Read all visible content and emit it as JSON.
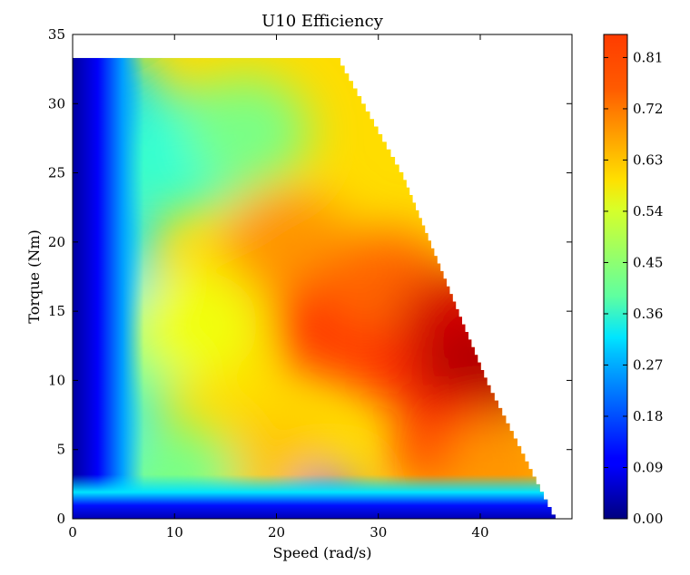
{
  "chart_data": {
    "type": "heatmap",
    "title": "U10 Efficiency",
    "xlabel": "Speed (rad/s)",
    "ylabel": "Torque (Nm)",
    "xlim": [
      0,
      49
    ],
    "ylim": [
      0,
      35
    ],
    "xticks": [
      0,
      10,
      20,
      30,
      40
    ],
    "yticks": [
      0,
      5,
      10,
      15,
      20,
      25,
      30,
      35
    ],
    "colormap": "jet",
    "colorbar": {
      "range": [
        0.0,
        0.8505
      ],
      "ticks": [
        "0.00",
        "0.09",
        "0.18",
        "0.27",
        "0.36",
        "0.45",
        "0.54",
        "0.63",
        "0.72",
        "0.81"
      ],
      "placement": "right"
    },
    "data_region": {
      "torque_max": 33.3,
      "boundary_speed_at_torque": [
        {
          "torque": 33.3,
          "speed": 26.3
        },
        {
          "torque": 25,
          "speed": 32.5
        },
        {
          "torque": 15,
          "speed": 38.0
        },
        {
          "torque": 10,
          "speed": 40.8
        },
        {
          "torque": 5,
          "speed": 44.2
        },
        {
          "torque": 2,
          "speed": 46.2
        },
        {
          "torque": 0,
          "speed": 47.6
        }
      ]
    },
    "regions": [
      {
        "speed": 1.5,
        "torque": 30,
        "efficiency": 0.09
      },
      {
        "speed": 12,
        "torque": 27,
        "efficiency": 0.35
      },
      {
        "speed": 17,
        "torque": 28,
        "efficiency": 0.42
      },
      {
        "speed": 6,
        "torque": 12,
        "efficiency": 0.4
      },
      {
        "speed": 12,
        "torque": 14,
        "efficiency": 0.52
      },
      {
        "speed": 21,
        "torque": 20,
        "efficiency": 0.62
      },
      {
        "speed": 26,
        "torque": 14,
        "efficiency": 0.7
      },
      {
        "speed": 33,
        "torque": 12,
        "efficiency": 0.71
      },
      {
        "speed": 31,
        "torque": 17,
        "efficiency": 0.66
      },
      {
        "speed": 38,
        "torque": 14,
        "efficiency": 0.78
      },
      {
        "speed": 40,
        "torque": 10,
        "efficiency": 0.81
      },
      {
        "speed": 38,
        "torque": 5,
        "efficiency": 0.72
      },
      {
        "speed": 42,
        "torque": 3.5,
        "efficiency": 0.62
      },
      {
        "speed": 20,
        "torque": 3.5,
        "efficiency": 0.58
      },
      {
        "speed": 10,
        "torque": 3,
        "efficiency": 0.42
      },
      {
        "speed": 25,
        "torque": 0.5,
        "efficiency": 0.1
      }
    ]
  }
}
